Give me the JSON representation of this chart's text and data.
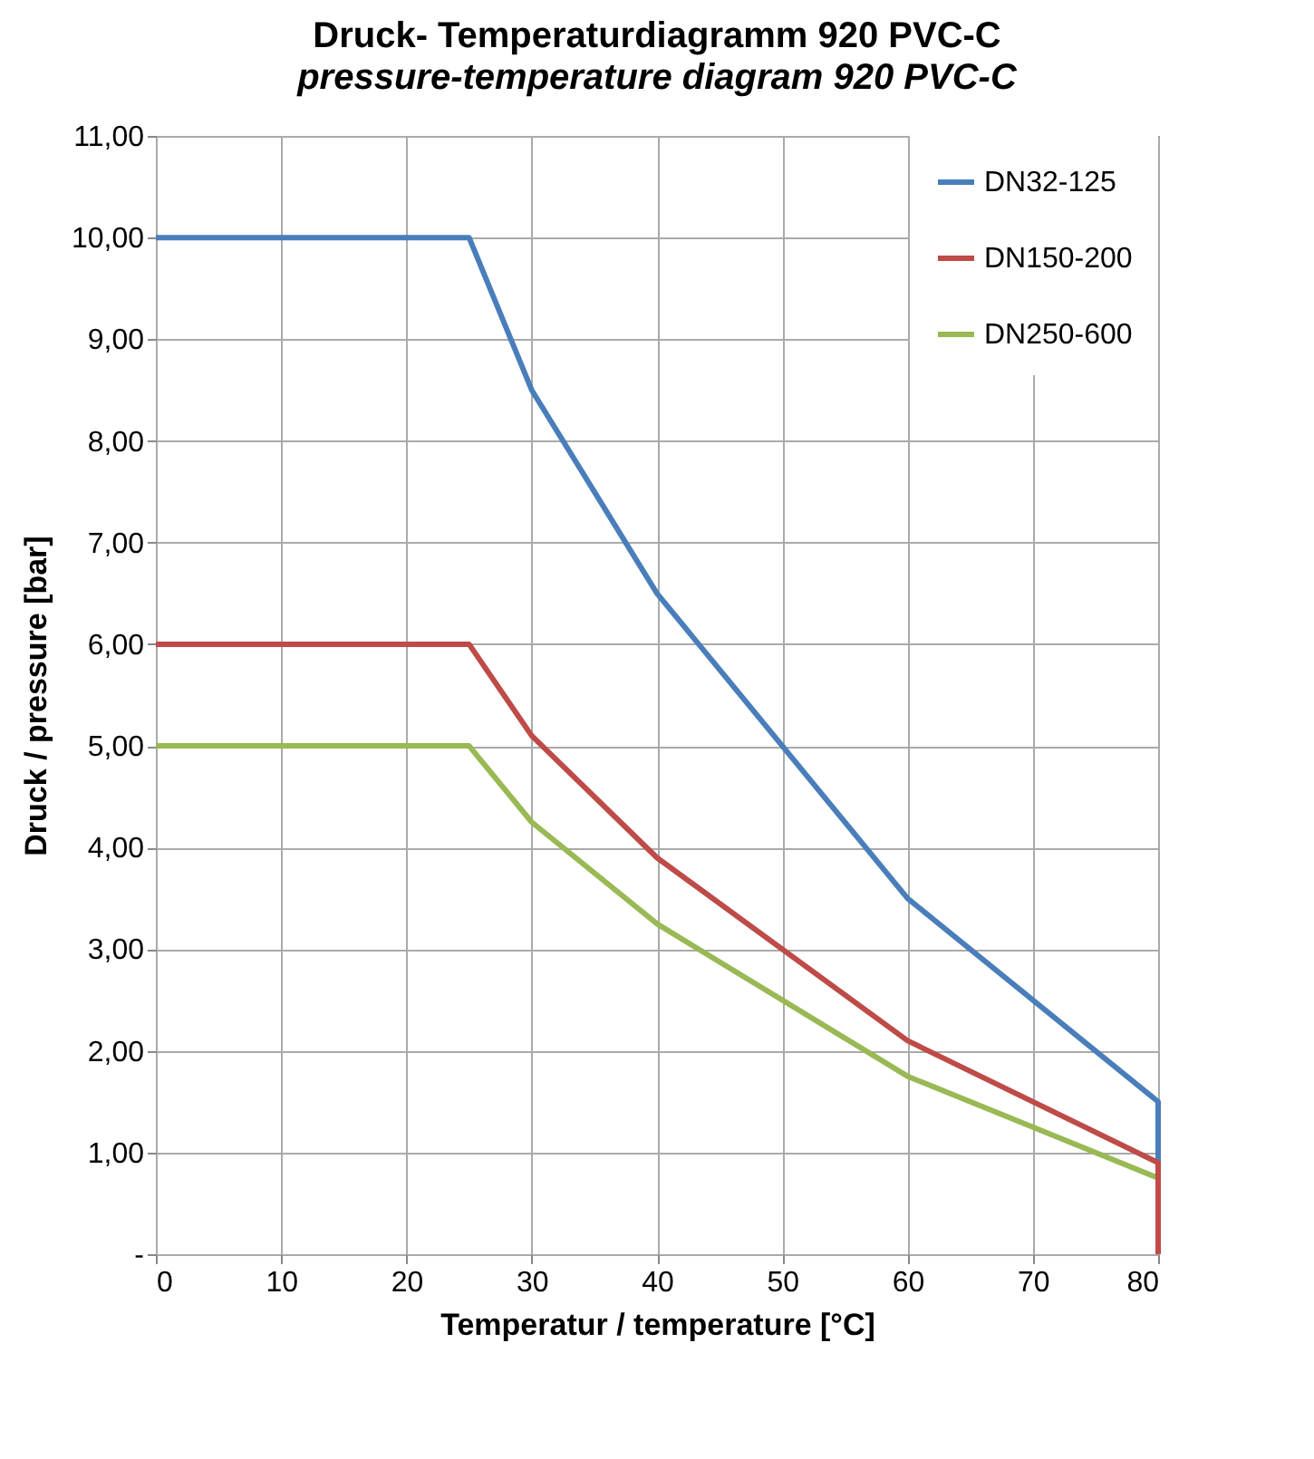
{
  "chart_data": {
    "type": "line",
    "title": "Druck- Temperaturdiagramm 920 PVC-C",
    "subtitle": "pressure-temperature  diagram  920 PVC-C",
    "xlabel": "Temperatur / temperature [°C]",
    "ylabel": "Druck / pressure [bar]",
    "x": [
      0,
      25,
      30,
      40,
      60,
      80,
      80
    ],
    "series": [
      {
        "name": "DN32-125",
        "color": "#4a7ebb",
        "values": [
          10,
          10,
          8.5,
          6.5,
          3.5,
          1.5,
          0
        ]
      },
      {
        "name": "DN150-200",
        "color": "#be4b48",
        "values": [
          6,
          6,
          5.1,
          3.9,
          2.1,
          0.9,
          0
        ]
      },
      {
        "name": "DN250-600",
        "color": "#98b954",
        "values": [
          5,
          5,
          4.25,
          3.25,
          1.75,
          0.75,
          0
        ]
      }
    ],
    "xlim": [
      0,
      80
    ],
    "xticks": [
      0,
      10,
      20,
      30,
      40,
      50,
      60,
      70,
      80
    ],
    "ylim": [
      0,
      11
    ],
    "yticks": [
      {
        "value": 0,
        "label": "-"
      },
      {
        "value": 1,
        "label": "1,00"
      },
      {
        "value": 2,
        "label": "2,00"
      },
      {
        "value": 3,
        "label": "3,00"
      },
      {
        "value": 4,
        "label": "4,00"
      },
      {
        "value": 5,
        "label": "5,00"
      },
      {
        "value": 6,
        "label": "6,00"
      },
      {
        "value": 7,
        "label": "7,00"
      },
      {
        "value": 8,
        "label": "8,00"
      },
      {
        "value": 9,
        "label": "9,00"
      },
      {
        "value": 10,
        "label": "10,00"
      },
      {
        "value": 11,
        "label": "11,00"
      }
    ],
    "grid": true,
    "legend": "top right",
    "marker": "none",
    "line_style": "solid"
  }
}
